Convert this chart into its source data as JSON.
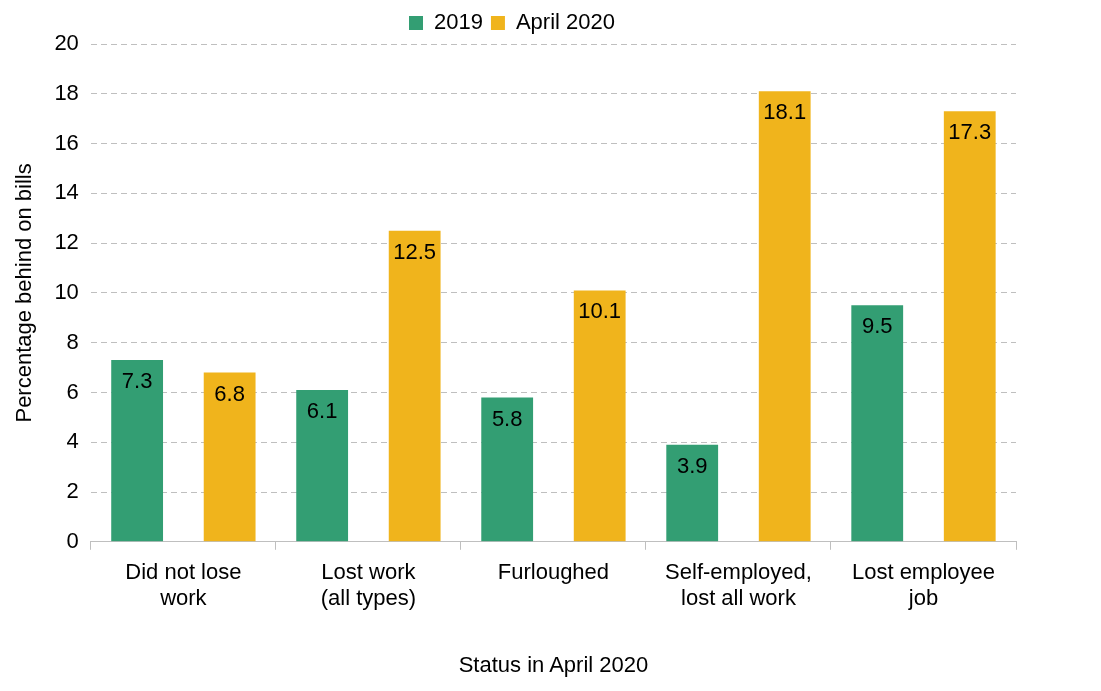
{
  "chart_data": {
    "type": "bar",
    "xlabel": "Status in April 2020",
    "ylabel": "Percentage behind on bills",
    "categories": [
      "Did not lose work",
      "Lost work (all types)",
      "Furloughed",
      "Self-employed, lost all work",
      "Lost employee job"
    ],
    "series": [
      {
        "name": "2019",
        "color": "#339e73",
        "values": [
          7.3,
          6.1,
          5.8,
          3.9,
          9.5
        ]
      },
      {
        "name": "April 2020",
        "color": "#f0b41c",
        "values": [
          6.8,
          12.5,
          10.1,
          18.1,
          17.3
        ]
      }
    ],
    "ylim": [
      0,
      20
    ],
    "yticks": [
      0,
      2,
      4,
      6,
      8,
      10,
      12,
      14,
      16,
      18,
      20
    ],
    "grid": "y",
    "legend": "top",
    "data_labels": true
  }
}
